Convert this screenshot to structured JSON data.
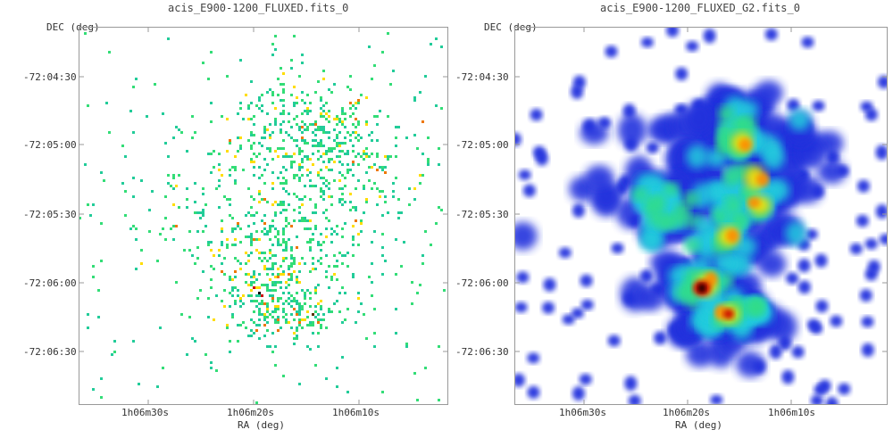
{
  "panels": [
    {
      "title": "acis_E900-1200_FLUXED.fits_0",
      "ylabel": "DEC (deg)",
      "xlabel": "RA (deg)",
      "yticks": [
        "-72:04:30",
        "-72:05:00",
        "-72:05:30",
        "-72:06:00",
        "-72:06:30"
      ],
      "xticks": [
        "1h06m30s",
        "1h06m20s",
        "1h06m10s"
      ],
      "style": "binned-counts"
    },
    {
      "title": "acis_E900-1200_FLUXED_G2.fits_0",
      "ylabel": "DEC (deg)",
      "xlabel": "RA (deg)",
      "yticks": [
        "-72:04:30",
        "-72:05:00",
        "-72:05:30",
        "-72:06:00",
        "-72:06:30"
      ],
      "xticks": [
        "1h06m30s",
        "1h06m20s",
        "1h06m10s"
      ],
      "style": "gaussian-smoothed"
    }
  ],
  "colors": {
    "frame": "#999999",
    "low": "#2233dd",
    "mid": "#33dd88",
    "high": "#ffdd00",
    "peak": "#cc0000",
    "max": "#000000"
  }
}
